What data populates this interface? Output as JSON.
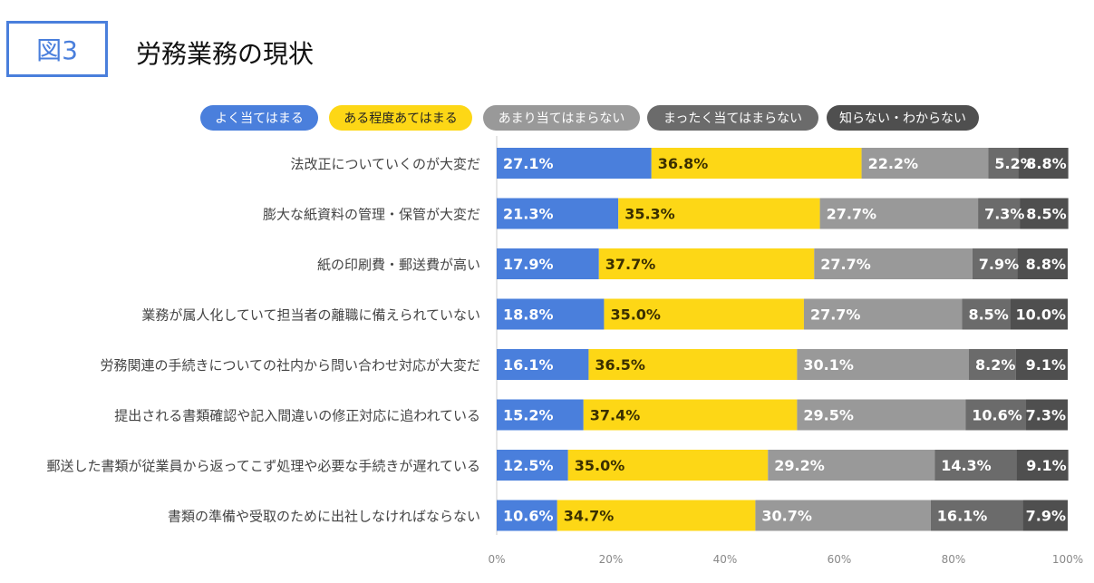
{
  "figure": {
    "badge": "図3",
    "title": "労務業務の現状"
  },
  "colors": {
    "series": [
      "#4a7fdc",
      "#fdd716",
      "#999999",
      "#6b6b6b",
      "#4f4f4f"
    ],
    "legend_text": [
      "#ffffff",
      "#222222",
      "#ffffff",
      "#ffffff",
      "#ffffff"
    ],
    "bar_text": [
      "#ffffff",
      "#3a2f00",
      "#ffffff",
      "#ffffff",
      "#ffffff"
    ],
    "axis": "#cccccc",
    "tick_text": "#888888",
    "category_text": "#444444"
  },
  "chart_data": {
    "type": "bar",
    "orientation": "horizontal",
    "stacked": true,
    "categories": [
      "法改正についていくのが大変だ",
      "膨大な紙資料の管理・保管が大変だ",
      "紙の印刷費・郵送費が高い",
      "業務が属人化していて担当者の離職に備えられていない",
      "労務関連の手続きについての社内から問い合わせ対応が大変だ",
      "提出される書類確認や記入間違いの修正対応に追われている",
      "郵送した書類が従業員から返ってこず処理や必要な手続きが遅れている",
      "書類の準備や受取のために出社しなければならない"
    ],
    "series": [
      {
        "name": "よく当てはまる",
        "values": [
          27.1,
          21.3,
          17.9,
          18.8,
          16.1,
          15.2,
          12.5,
          10.6
        ]
      },
      {
        "name": "ある程度あてはまる",
        "values": [
          36.8,
          35.3,
          37.7,
          35.0,
          36.5,
          37.4,
          35.0,
          34.7
        ]
      },
      {
        "name": "あまり当てはまらない",
        "values": [
          22.2,
          27.7,
          27.7,
          27.7,
          30.1,
          29.5,
          29.2,
          30.7
        ]
      },
      {
        "name": "まったく当てはまらない",
        "values": [
          5.2,
          7.3,
          7.9,
          8.5,
          8.2,
          10.6,
          14.3,
          16.1
        ]
      },
      {
        "name": "知らない・わからない",
        "values": [
          8.8,
          8.5,
          8.8,
          10.0,
          9.1,
          7.3,
          9.1,
          7.9
        ]
      }
    ],
    "x_ticks": [
      "0%",
      "20%",
      "40%",
      "60%",
      "80%",
      "100%"
    ],
    "xlim": [
      0,
      100
    ],
    "legend_position": "top",
    "grid": false
  }
}
